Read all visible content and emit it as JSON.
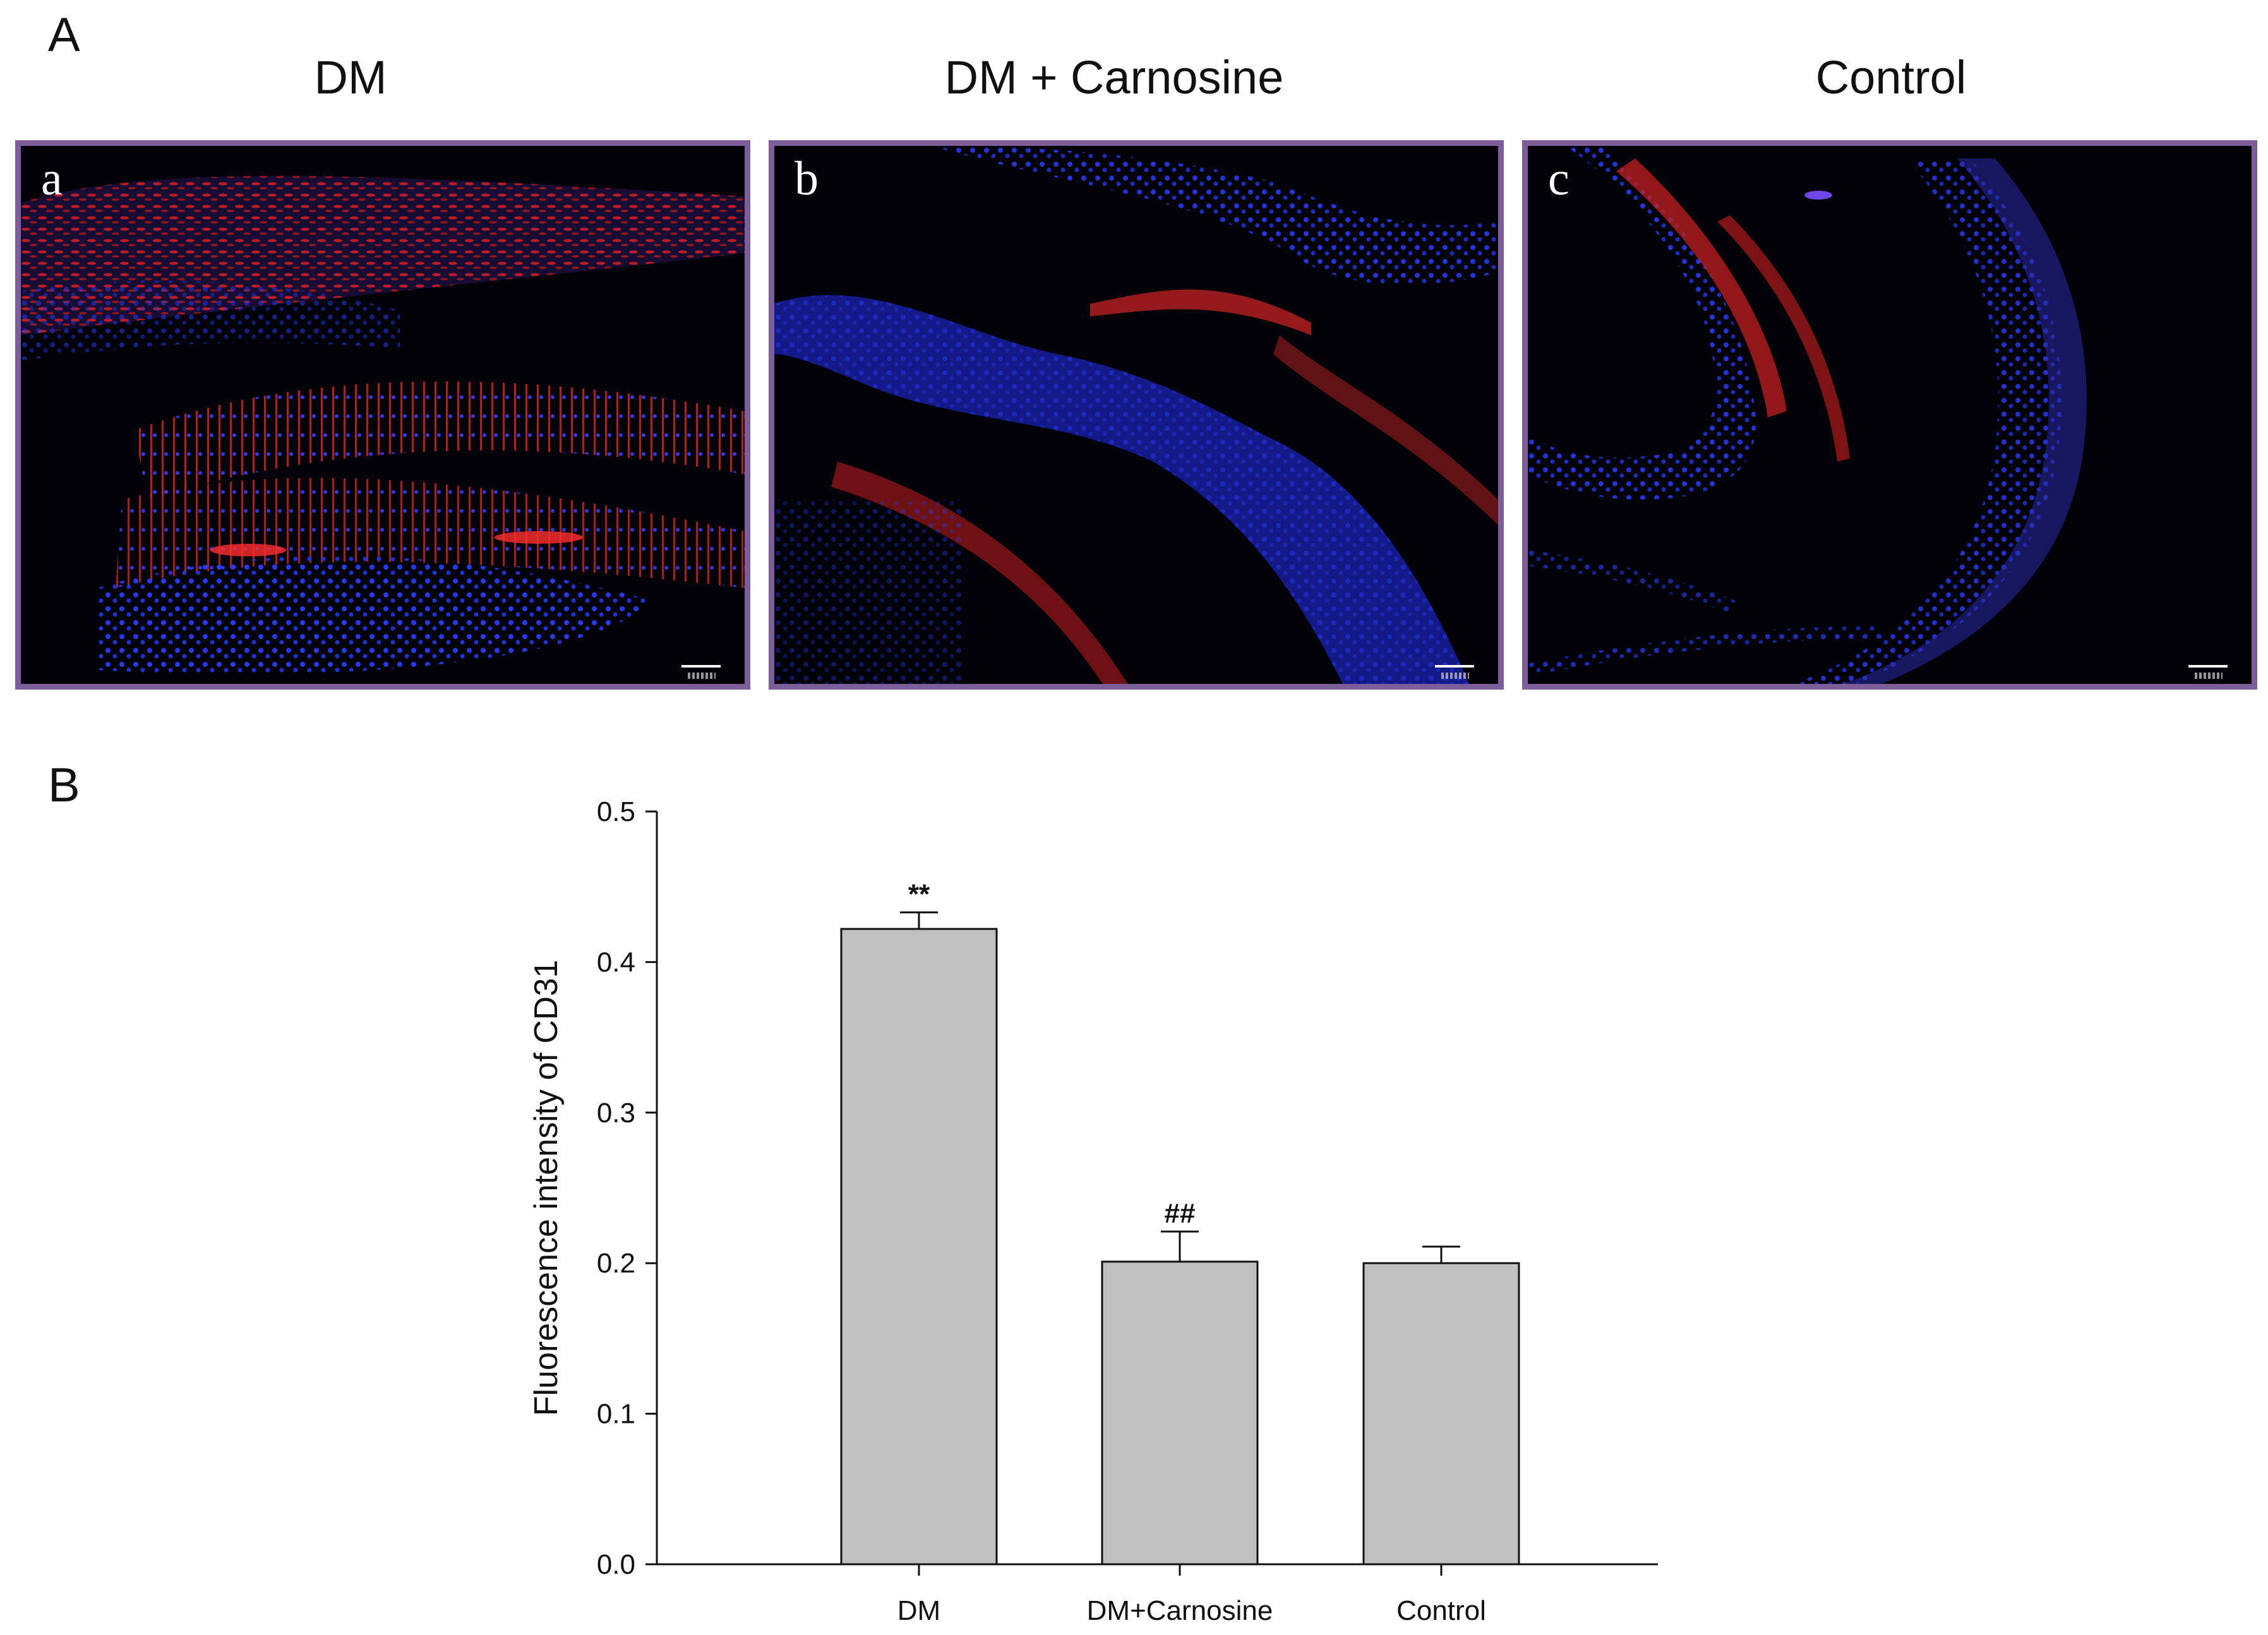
{
  "panel_a": {
    "letter": "A",
    "images": [
      {
        "title": "DM",
        "sublabel": "a"
      },
      {
        "title": "DM + Carnosine",
        "sublabel": "b"
      },
      {
        "title": "Control",
        "sublabel": "c"
      }
    ]
  },
  "panel_b": {
    "letter": "B"
  },
  "chart_data": {
    "type": "bar",
    "categories": [
      "DM",
      "DM+Carnosine",
      "Control"
    ],
    "values": [
      0.422,
      0.201,
      0.2
    ],
    "errors": [
      0.011,
      0.02,
      0.011
    ],
    "annotations": [
      "**",
      "##",
      ""
    ],
    "ylabel": "Fluorescence intensity of CD31",
    "xlabel": "",
    "ylim": [
      0,
      0.5
    ],
    "yticks": [
      "0.0",
      "0.1",
      "0.2",
      "0.3",
      "0.4",
      "0.5"
    ],
    "grid": false,
    "bar_color": "#c0c0c0"
  },
  "colors": {
    "frame": "#7d5d9a",
    "nuclei": "#2a3cff",
    "cd31": "#e02a2a"
  }
}
